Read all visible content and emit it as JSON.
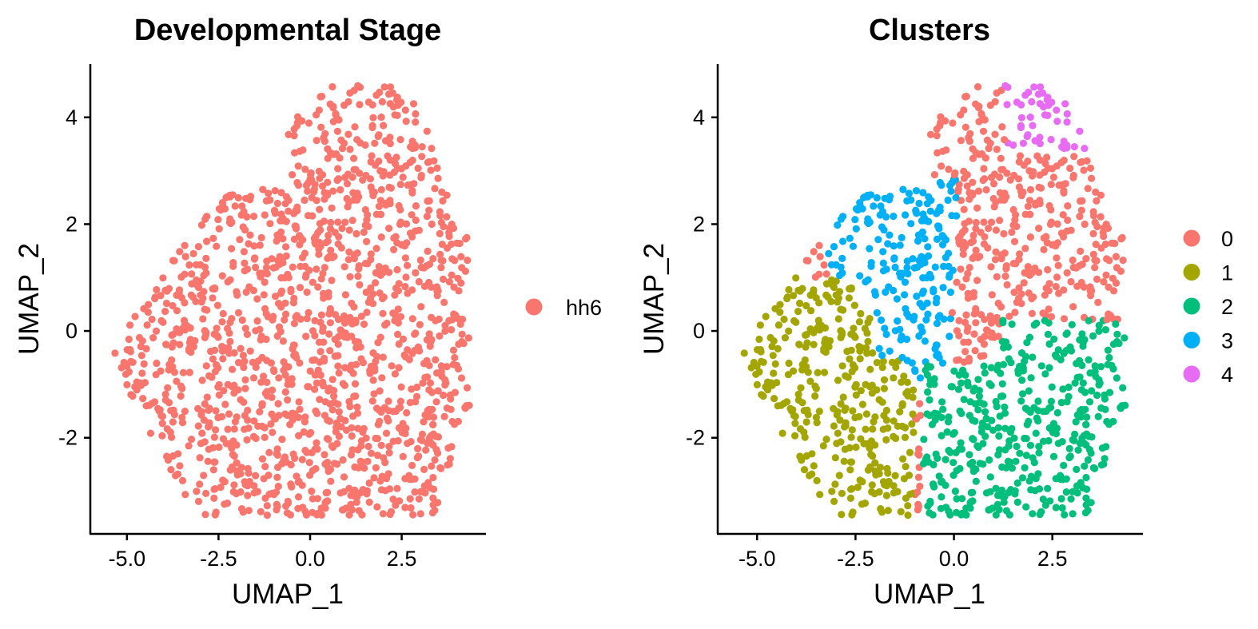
{
  "chart_data": [
    {
      "type": "scatter",
      "title": "Developmental Stage",
      "xlabel": "UMAP_1",
      "ylabel": "UMAP_2",
      "xlim": [
        -6.0,
        4.8
      ],
      "ylim": [
        -3.8,
        5.0
      ],
      "xticks": [
        "-5.0",
        "-2.5",
        "0.0",
        "2.5"
      ],
      "yticks": [
        "-2",
        "0",
        "2",
        "4"
      ],
      "legend_position": "right",
      "series": [
        {
          "name": "hh6",
          "color": "#F8766D",
          "n_points": 1400
        }
      ]
    },
    {
      "type": "scatter",
      "title": "Clusters",
      "xlabel": "UMAP_1",
      "ylabel": "UMAP_2",
      "xlim": [
        -6.0,
        4.8
      ],
      "ylim": [
        -3.8,
        5.0
      ],
      "xticks": [
        "-5.0",
        "-2.5",
        "0.0",
        "2.5"
      ],
      "yticks": [
        "-2",
        "0",
        "2",
        "4"
      ],
      "legend_position": "right",
      "series": [
        {
          "name": "0",
          "color": "#F8766D"
        },
        {
          "name": "1",
          "color": "#A3A500"
        },
        {
          "name": "2",
          "color": "#00BF7D"
        },
        {
          "name": "3",
          "color": "#00B0F6"
        },
        {
          "name": "4",
          "color": "#E76BF3"
        }
      ]
    }
  ]
}
